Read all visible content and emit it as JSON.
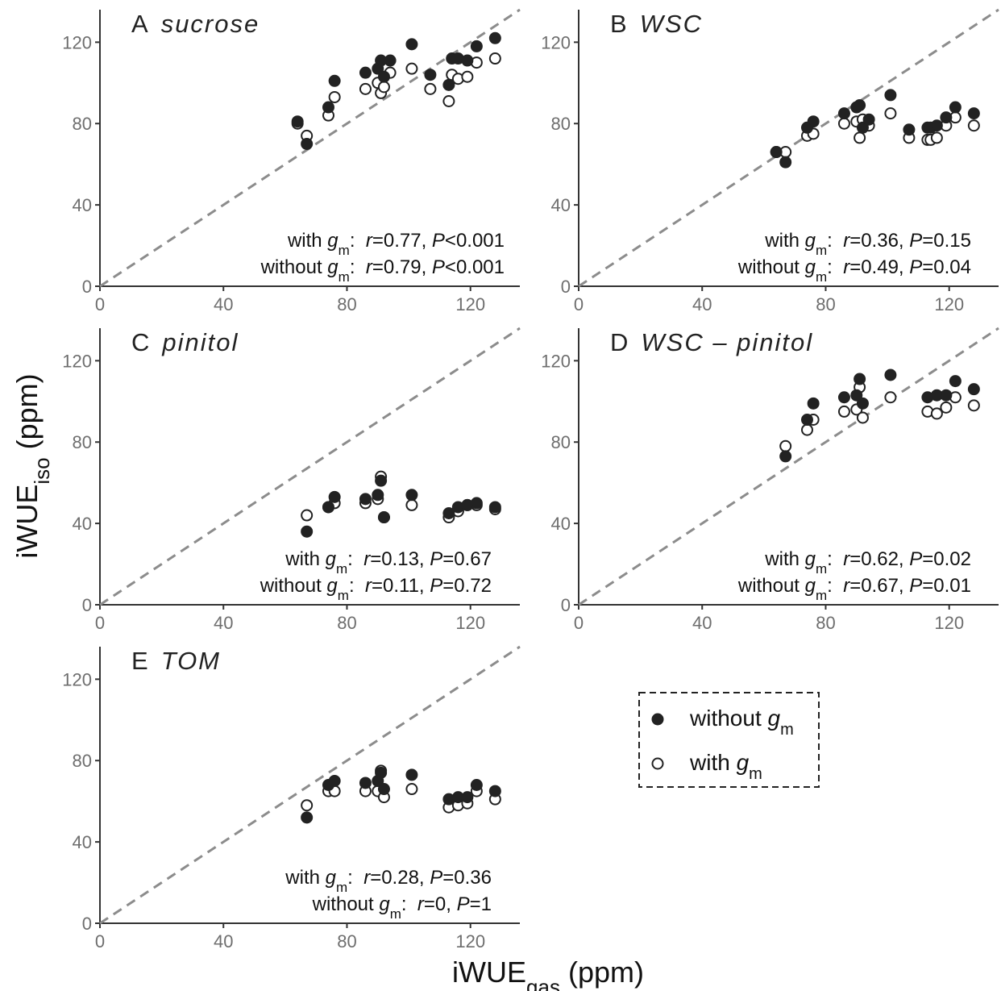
{
  "chart_data": [
    {
      "type": "scatter",
      "label": "A",
      "title": "sucrose",
      "x": [
        64,
        67,
        74,
        76,
        86,
        90,
        91,
        92,
        94,
        101,
        107,
        113,
        114,
        116,
        119,
        122,
        128
      ],
      "series": [
        {
          "color": "#222222",
          "filled": true,
          "values": [
            81,
            70,
            88,
            101,
            105,
            107,
            111,
            103,
            111,
            119,
            104,
            99,
            112,
            112,
            111,
            118,
            122
          ]
        },
        {
          "color": "#222222",
          "filled": false,
          "values": [
            80,
            74,
            84,
            93,
            97,
            100,
            95,
            98,
            105,
            107,
            97,
            91,
            104,
            102,
            103,
            110,
            112
          ]
        }
      ],
      "annotations": [
        [
          "with ",
          "g",
          "m",
          ":  ",
          "r",
          "=0.77, ",
          "P",
          "<0.001"
        ],
        [
          "without ",
          "g",
          "m",
          ":  ",
          "r",
          "=0.79, ",
          "P",
          "<0.001"
        ]
      ],
      "xlim": [
        0,
        136
      ],
      "ylim": [
        0,
        136
      ],
      "xticks": [
        0,
        40,
        80,
        120
      ],
      "yticks": [
        0,
        40,
        80,
        120
      ],
      "identity_line": true
    },
    {
      "type": "scatter",
      "label": "B",
      "title": "WSC",
      "x": [
        64,
        67,
        74,
        76,
        86,
        90,
        91,
        92,
        94,
        101,
        107,
        113,
        114,
        116,
        119,
        122,
        128
      ],
      "series": [
        {
          "color": "#222222",
          "filled": true,
          "values": [
            66,
            61,
            78,
            81,
            85,
            88,
            89,
            78,
            82,
            94,
            77,
            78,
            78,
            79,
            83,
            88,
            85
          ]
        },
        {
          "color": "#222222",
          "filled": false,
          "values": [
            66,
            66,
            74,
            75,
            80,
            81,
            73,
            82,
            79,
            85,
            73,
            72,
            72,
            73,
            79,
            83,
            79
          ]
        }
      ],
      "annotations": [
        [
          "with ",
          "g",
          "m",
          ":  ",
          "r",
          "=0.36, ",
          "P",
          "=0.15"
        ],
        [
          "without ",
          "g",
          "m",
          ":  ",
          "r",
          "=0.49, ",
          "P",
          "=0.04"
        ]
      ],
      "xlim": [
        0,
        136
      ],
      "ylim": [
        0,
        136
      ],
      "xticks": [
        0,
        40,
        80,
        120
      ],
      "yticks": [
        0,
        40,
        80,
        120
      ],
      "identity_line": true
    },
    {
      "type": "scatter",
      "label": "C",
      "title": "pinitol",
      "x": [
        67,
        74,
        76,
        86,
        90,
        91,
        92,
        101,
        113,
        116,
        119,
        122,
        128
      ],
      "series": [
        {
          "color": "#222222",
          "filled": true,
          "values": [
            36,
            48,
            53,
            52,
            54,
            61,
            43,
            54,
            45,
            48,
            49,
            50,
            48
          ]
        },
        {
          "color": "#222222",
          "filled": false,
          "values": [
            44,
            48,
            50,
            50,
            52,
            63,
            43,
            49,
            43,
            46,
            49,
            49,
            47
          ]
        }
      ],
      "annotations": [
        [
          "with ",
          "g",
          "m",
          ":  ",
          "r",
          "=0.13, ",
          "P",
          "=0.67"
        ],
        [
          "without ",
          "g",
          "m",
          ":  ",
          "r",
          "=0.11, ",
          "P",
          "=0.72"
        ]
      ],
      "xlim": [
        0,
        136
      ],
      "ylim": [
        0,
        136
      ],
      "xticks": [
        0,
        40,
        80,
        120
      ],
      "yticks": [
        0,
        40,
        80,
        120
      ],
      "identity_line": true
    },
    {
      "type": "scatter",
      "label": "D",
      "title": "WSC – pinitol",
      "x": [
        67,
        74,
        76,
        86,
        90,
        91,
        92,
        101,
        113,
        116,
        119,
        122,
        128
      ],
      "series": [
        {
          "color": "#222222",
          "filled": true,
          "values": [
            73,
            91,
            99,
            102,
            103,
            111,
            99,
            113,
            102,
            103,
            103,
            110,
            106
          ]
        },
        {
          "color": "#222222",
          "filled": false,
          "values": [
            78,
            86,
            91,
            95,
            96,
            107,
            92,
            102,
            95,
            94,
            97,
            102,
            98
          ]
        }
      ],
      "annotations": [
        [
          "with ",
          "g",
          "m",
          ":  ",
          "r",
          "=0.62, ",
          "P",
          "=0.02"
        ],
        [
          "without ",
          "g",
          "m",
          ":  ",
          "r",
          "=0.67, ",
          "P",
          "=0.01"
        ]
      ],
      "xlim": [
        0,
        136
      ],
      "ylim": [
        0,
        136
      ],
      "xticks": [
        0,
        40,
        80,
        120
      ],
      "yticks": [
        0,
        40,
        80,
        120
      ],
      "identity_line": true
    },
    {
      "type": "scatter",
      "label": "E",
      "title": "TOM",
      "x": [
        67,
        74,
        76,
        86,
        90,
        91,
        92,
        101,
        113,
        116,
        119,
        122,
        128
      ],
      "series": [
        {
          "color": "#222222",
          "filled": true,
          "values": [
            52,
            68,
            70,
            69,
            70,
            74,
            66,
            73,
            61,
            62,
            62,
            68,
            65
          ]
        },
        {
          "color": "#222222",
          "filled": false,
          "values": [
            58,
            65,
            65,
            65,
            65,
            75,
            62,
            66,
            57,
            58,
            59,
            65,
            61
          ]
        }
      ],
      "annotations": [
        [
          "with ",
          "g",
          "m",
          ":  ",
          "r",
          "=0.28, ",
          "P",
          "=0.36"
        ],
        [
          "without ",
          "g",
          "m",
          ":  ",
          "r",
          "=0, ",
          "P",
          "=1"
        ]
      ],
      "xlim": [
        0,
        136
      ],
      "ylim": [
        0,
        136
      ],
      "xticks": [
        0,
        40,
        80,
        120
      ],
      "yticks": [
        0,
        40,
        80,
        120
      ],
      "identity_line": true
    }
  ],
  "axis_labels": {
    "x": [
      "iWUE",
      "gas",
      " (ppm)"
    ],
    "y": [
      "iWUE",
      "iso",
      " (ppm)"
    ]
  },
  "legend": [
    [
      "without ",
      "g",
      "m"
    ],
    [
      "with ",
      "g",
      "m"
    ]
  ]
}
